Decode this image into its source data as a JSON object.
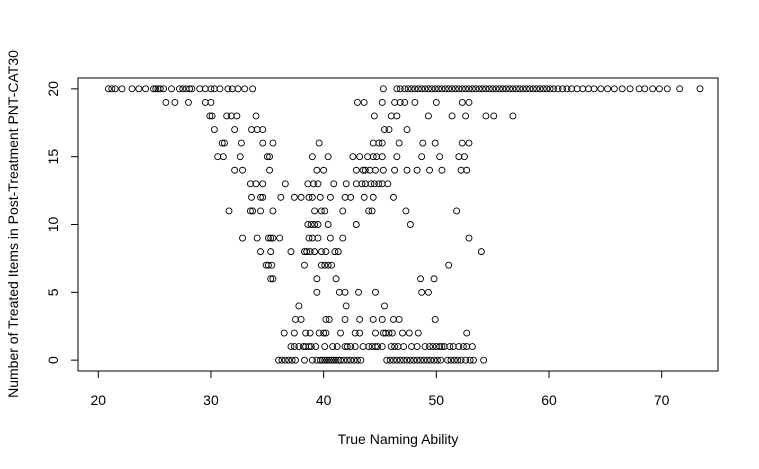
{
  "chart_data": {
    "type": "scatter",
    "title": "",
    "xlabel": "True Naming Ability",
    "ylabel": "Number of Treated Items in Post-Treatment PNT-CAT30",
    "xlim": [
      18.2,
      75.0
    ],
    "ylim": [
      -0.8,
      20.8
    ],
    "x_ticks": [
      20,
      30,
      40,
      50,
      60,
      70
    ],
    "y_ticks": [
      0,
      5,
      10,
      15,
      20
    ],
    "grid": false,
    "legend": "none",
    "marker": "open-circle",
    "colors": {
      "marker": "#000000",
      "axis": "#000000",
      "background": "#ffffff"
    },
    "points": {
      "20": [
        20.9,
        21.2,
        21.5,
        22.1,
        23.0,
        23.6,
        24.2,
        24.9,
        25.1,
        25.3,
        25.5,
        25.8,
        26.5,
        27.2,
        27.5,
        27.8,
        28.1,
        28.3,
        29.0,
        29.5,
        30.0,
        30.3,
        30.8,
        31.5,
        31.9,
        32.4,
        33.0,
        33.7,
        45.3,
        46.5,
        46.8,
        47.2,
        47.5,
        47.8,
        48.1,
        48.4,
        48.7,
        49.0,
        49.3,
        49.6,
        49.9,
        50.2,
        50.5,
        50.8,
        51.1,
        51.4,
        51.7,
        52.0,
        52.3,
        52.6,
        52.9,
        53.2,
        53.5,
        53.8,
        54.1,
        54.4,
        54.7,
        55.0,
        55.3,
        55.6,
        55.9,
        56.2,
        56.5,
        56.8,
        57.1,
        57.4,
        57.7,
        58.0,
        58.3,
        58.6,
        58.9,
        59.2,
        59.5,
        59.8,
        60.1,
        60.4,
        60.8,
        61.2,
        61.6,
        62.0,
        62.5,
        63.0,
        63.5,
        64.0,
        64.6,
        65.2,
        65.8,
        66.5,
        67.2,
        68.0,
        68.5,
        69.2,
        69.8,
        70.5,
        71.6,
        73.4
      ],
      "19": [
        26.0,
        26.8,
        28.0,
        29.5,
        30.0,
        43.0,
        43.6,
        45.2,
        46.3,
        46.8,
        47.2,
        48.1,
        50.0,
        52.3,
        52.9
      ],
      "18": [
        29.9,
        30.1,
        31.4,
        31.8,
        32.3,
        34.0,
        44.5,
        46.0,
        46.5,
        49.3,
        51.4,
        52.6,
        54.4,
        55.1,
        56.8
      ],
      "17": [
        30.3,
        32.1,
        33.6,
        34.1,
        34.6,
        45.4,
        45.8,
        47.4
      ],
      "16": [
        31.0,
        31.2,
        32.7,
        34.6,
        35.5,
        39.6,
        44.4,
        44.9,
        45.2,
        46.7,
        48.8,
        49.9,
        52.3,
        52.9
      ],
      "15": [
        30.6,
        31.1,
        32.6,
        35.0,
        35.2,
        39.0,
        40.4,
        42.6,
        43.2,
        43.9,
        44.4,
        44.7,
        45.2,
        46.5,
        48.7,
        50.3,
        52.0,
        52.5
      ],
      "14": [
        32.1,
        32.8,
        35.2,
        39.4,
        40.0,
        42.9,
        43.5,
        43.7,
        44.1,
        44.6,
        45.3,
        46.3,
        47.4,
        48.3,
        49.4,
        50.5,
        52.2,
        52.7
      ],
      "13": [
        33.5,
        34.0,
        34.6,
        36.6,
        38.6,
        39.1,
        39.5,
        40.9,
        42.0,
        42.9,
        43.4,
        43.7,
        44.2,
        44.5,
        44.9,
        45.2,
        45.7
      ],
      "12": [
        33.6,
        34.4,
        34.6,
        36.2,
        37.4,
        38.0,
        38.7,
        39.0,
        39.7,
        40.6,
        41.9,
        42.4,
        43.6,
        44.4,
        46.2
      ],
      "11": [
        31.6,
        33.5,
        33.7,
        34.4,
        35.5,
        39.2,
        39.8,
        40.1,
        41.7,
        44.0,
        44.3,
        47.3,
        51.8
      ],
      "10": [
        38.6,
        38.9,
        39.2,
        39.5,
        40.4,
        42.9,
        47.7
      ],
      "9": [
        32.8,
        34.1,
        35.1,
        35.3,
        35.5,
        36.1,
        38.7,
        39.0,
        39.5,
        40.6,
        41.7,
        52.9
      ],
      "8": [
        34.4,
        35.3,
        37.1,
        38.3,
        38.5,
        38.8,
        39.2,
        39.8,
        40.2,
        41.0,
        41.3,
        54.0
      ],
      "7": [
        34.9,
        35.1,
        35.4,
        38.3,
        39.8,
        40.1,
        40.4,
        40.7,
        51.1
      ],
      "6": [
        35.3,
        35.5,
        39.4,
        41.1,
        48.6,
        49.8
      ],
      "5": [
        39.4,
        41.4,
        41.9,
        43.1,
        44.6,
        48.7,
        49.3
      ],
      "4": [
        37.8,
        42.0,
        45.4
      ],
      "3": [
        37.5,
        38.0,
        40.2,
        40.5,
        41.9,
        43.2,
        44.4,
        45.2,
        46.2,
        46.7,
        49.9
      ],
      "2": [
        36.5,
        37.4,
        38.4,
        38.8,
        39.6,
        40.0,
        40.2,
        41.5,
        42.8,
        43.2,
        44.6,
        45.3,
        45.5,
        45.8,
        46.1,
        47.0,
        47.6,
        48.4,
        52.7
      ],
      "1": [
        37.1,
        37.4,
        37.8,
        38.2,
        38.4,
        38.7,
        38.9,
        39.3,
        40.1,
        40.8,
        41.2,
        41.9,
        42.1,
        42.4,
        42.8,
        43.5,
        44.0,
        44.3,
        44.6,
        44.8,
        45.2,
        46.0,
        46.3,
        46.6,
        47.1,
        47.8,
        48.3,
        49.0,
        49.4,
        49.7,
        50.0,
        50.3,
        50.5,
        50.7,
        51.2,
        51.5,
        52.0,
        52.4,
        52.7,
        53.2
      ],
      "0": [
        36.0,
        36.3,
        36.6,
        36.9,
        37.2,
        37.5,
        38.3,
        39.0,
        39.4,
        39.7,
        39.9,
        40.1,
        40.3,
        40.5,
        40.7,
        40.9,
        41.1,
        41.3,
        41.5,
        41.8,
        42.1,
        42.4,
        42.7,
        43.0,
        43.3,
        45.6,
        45.9,
        46.2,
        46.5,
        46.8,
        47.1,
        47.4,
        47.7,
        48.0,
        48.3,
        48.6,
        48.9,
        49.2,
        49.5,
        49.8,
        50.1,
        50.4,
        51.0,
        51.3,
        51.6,
        51.9,
        52.2,
        52.6,
        53.0,
        53.3,
        54.2
      ]
    }
  }
}
